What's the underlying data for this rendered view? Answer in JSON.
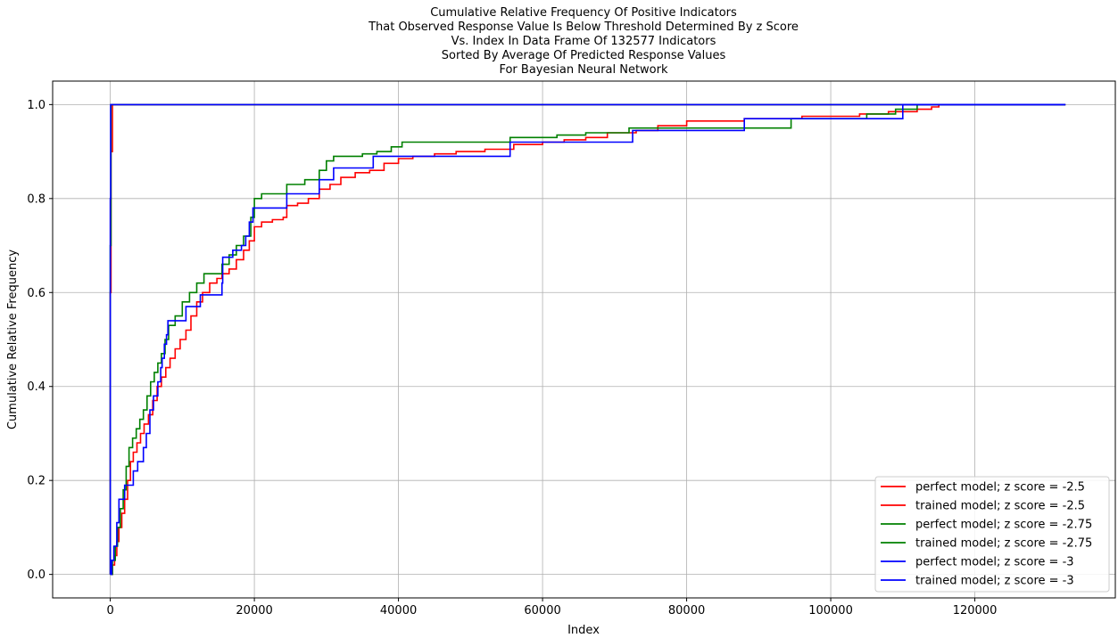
{
  "chart_data": {
    "type": "line",
    "title_lines": [
      "Cumulative Relative Frequency Of Positive Indicators",
      "That Observed Response Value Is Below Threshold Determined By z Score",
      "Vs. Index In Data Frame Of 132577 Indicators",
      "Sorted By Average Of Predicted Response Values",
      "For Bayesian Neural Network"
    ],
    "xlabel": "Index",
    "ylabel": "Cumulative Relative Frequency",
    "xlim": [
      -8000,
      139500
    ],
    "ylim": [
      -0.05,
      1.05
    ],
    "xticks": [
      0,
      20000,
      40000,
      60000,
      80000,
      100000,
      120000
    ],
    "yticks": [
      0.0,
      0.2,
      0.4,
      0.6,
      0.8,
      1.0
    ],
    "ytick_labels": [
      "0.0",
      "0.2",
      "0.4",
      "0.6",
      "0.8",
      "1.0"
    ],
    "grid": true,
    "legend_position": "lower-right",
    "series": [
      {
        "name": "perfect model; z score = -2.5",
        "color": "#ff0000",
        "step": true,
        "points": [
          [
            0,
            0
          ],
          [
            0,
            0.6
          ],
          [
            100,
            0.9
          ],
          [
            300,
            1.0
          ],
          [
            132577,
            1.0
          ]
        ]
      },
      {
        "name": "trained model; z score = -2.5",
        "color": "#ff0000",
        "step": true,
        "points": [
          [
            0,
            0
          ],
          [
            300,
            0.02
          ],
          [
            600,
            0.04
          ],
          [
            900,
            0.07
          ],
          [
            1200,
            0.1
          ],
          [
            1600,
            0.13
          ],
          [
            2000,
            0.16
          ],
          [
            2400,
            0.2
          ],
          [
            2800,
            0.24
          ],
          [
            3200,
            0.26
          ],
          [
            3700,
            0.28
          ],
          [
            4200,
            0.3
          ],
          [
            4700,
            0.32
          ],
          [
            5300,
            0.34
          ],
          [
            5900,
            0.37
          ],
          [
            6500,
            0.4
          ],
          [
            7100,
            0.42
          ],
          [
            7700,
            0.44
          ],
          [
            8300,
            0.46
          ],
          [
            9000,
            0.48
          ],
          [
            9700,
            0.5
          ],
          [
            10500,
            0.52
          ],
          [
            11200,
            0.55
          ],
          [
            12000,
            0.58
          ],
          [
            12800,
            0.6
          ],
          [
            13800,
            0.62
          ],
          [
            14800,
            0.63
          ],
          [
            15500,
            0.64
          ],
          [
            16500,
            0.65
          ],
          [
            17500,
            0.67
          ],
          [
            18500,
            0.69
          ],
          [
            19300,
            0.71
          ],
          [
            20000,
            0.74
          ],
          [
            21000,
            0.75
          ],
          [
            22500,
            0.755
          ],
          [
            24000,
            0.76
          ],
          [
            24500,
            0.785
          ],
          [
            26000,
            0.79
          ],
          [
            27500,
            0.8
          ],
          [
            29000,
            0.82
          ],
          [
            30500,
            0.83
          ],
          [
            32000,
            0.845
          ],
          [
            34000,
            0.855
          ],
          [
            36000,
            0.86
          ],
          [
            38000,
            0.875
          ],
          [
            40000,
            0.885
          ],
          [
            42000,
            0.89
          ],
          [
            45000,
            0.895
          ],
          [
            48000,
            0.9
          ],
          [
            52000,
            0.905
          ],
          [
            56000,
            0.915
          ],
          [
            60000,
            0.92
          ],
          [
            63000,
            0.925
          ],
          [
            66000,
            0.93
          ],
          [
            69000,
            0.94
          ],
          [
            73000,
            0.945
          ],
          [
            76000,
            0.955
          ],
          [
            80000,
            0.965
          ],
          [
            88000,
            0.97
          ],
          [
            96000,
            0.975
          ],
          [
            104000,
            0.98
          ],
          [
            108000,
            0.985
          ],
          [
            112000,
            0.99
          ],
          [
            114000,
            0.995
          ],
          [
            115000,
            1.0
          ],
          [
            132577,
            1.0
          ]
        ]
      },
      {
        "name": "perfect model; z score = -2.75",
        "color": "#008000",
        "step": true,
        "points": [
          [
            0,
            0
          ],
          [
            0,
            0.7
          ],
          [
            100,
            1.0
          ],
          [
            132577,
            1.0
          ]
        ]
      },
      {
        "name": "trained model; z score = -2.75",
        "color": "#008000",
        "step": true,
        "points": [
          [
            0,
            0
          ],
          [
            300,
            0.03
          ],
          [
            700,
            0.06
          ],
          [
            1000,
            0.1
          ],
          [
            1400,
            0.14
          ],
          [
            1800,
            0.18
          ],
          [
            2200,
            0.23
          ],
          [
            2600,
            0.27
          ],
          [
            3100,
            0.29
          ],
          [
            3600,
            0.31
          ],
          [
            4100,
            0.33
          ],
          [
            4600,
            0.35
          ],
          [
            5100,
            0.38
          ],
          [
            5600,
            0.41
          ],
          [
            6100,
            0.43
          ],
          [
            6600,
            0.45
          ],
          [
            7100,
            0.47
          ],
          [
            7600,
            0.5
          ],
          [
            8100,
            0.53
          ],
          [
            9000,
            0.55
          ],
          [
            10000,
            0.58
          ],
          [
            11000,
            0.6
          ],
          [
            12000,
            0.62
          ],
          [
            13000,
            0.64
          ],
          [
            15500,
            0.66
          ],
          [
            16500,
            0.68
          ],
          [
            17500,
            0.7
          ],
          [
            18500,
            0.72
          ],
          [
            19500,
            0.76
          ],
          [
            20000,
            0.8
          ],
          [
            21000,
            0.81
          ],
          [
            24500,
            0.83
          ],
          [
            27000,
            0.84
          ],
          [
            29000,
            0.86
          ],
          [
            30000,
            0.88
          ],
          [
            31000,
            0.89
          ],
          [
            35000,
            0.895
          ],
          [
            37000,
            0.9
          ],
          [
            39000,
            0.91
          ],
          [
            40500,
            0.92
          ],
          [
            55500,
            0.93
          ],
          [
            62000,
            0.935
          ],
          [
            66000,
            0.94
          ],
          [
            72000,
            0.95
          ],
          [
            88000,
            0.95
          ],
          [
            94500,
            0.97
          ],
          [
            105000,
            0.98
          ],
          [
            109000,
            0.99
          ],
          [
            112000,
            1.0
          ],
          [
            132577,
            1.0
          ]
        ]
      },
      {
        "name": "perfect model; z score = -3",
        "color": "#0000ff",
        "step": true,
        "points": [
          [
            0,
            0
          ],
          [
            0,
            0.8
          ],
          [
            50,
            1.0
          ],
          [
            132577,
            1.0
          ]
        ]
      },
      {
        "name": "trained model; z score = -3",
        "color": "#0000ff",
        "step": true,
        "points": [
          [
            0,
            0
          ],
          [
            200,
            0.03
          ],
          [
            500,
            0.06
          ],
          [
            900,
            0.11
          ],
          [
            1200,
            0.16
          ],
          [
            2000,
            0.19
          ],
          [
            3200,
            0.22
          ],
          [
            3800,
            0.24
          ],
          [
            4600,
            0.27
          ],
          [
            5000,
            0.3
          ],
          [
            5500,
            0.35
          ],
          [
            6000,
            0.38
          ],
          [
            6600,
            0.41
          ],
          [
            7000,
            0.44
          ],
          [
            7200,
            0.46
          ],
          [
            7500,
            0.49
          ],
          [
            7800,
            0.51
          ],
          [
            8000,
            0.54
          ],
          [
            10500,
            0.57
          ],
          [
            12500,
            0.595
          ],
          [
            15500,
            0.62
          ],
          [
            15600,
            0.675
          ],
          [
            17000,
            0.69
          ],
          [
            18200,
            0.7
          ],
          [
            18800,
            0.72
          ],
          [
            19300,
            0.75
          ],
          [
            19800,
            0.78
          ],
          [
            24500,
            0.81
          ],
          [
            29000,
            0.84
          ],
          [
            31000,
            0.865
          ],
          [
            36500,
            0.89
          ],
          [
            39500,
            0.89
          ],
          [
            55500,
            0.92
          ],
          [
            72500,
            0.945
          ],
          [
            88000,
            0.97
          ],
          [
            110000,
            1.0
          ],
          [
            132577,
            1.0
          ]
        ]
      }
    ]
  }
}
